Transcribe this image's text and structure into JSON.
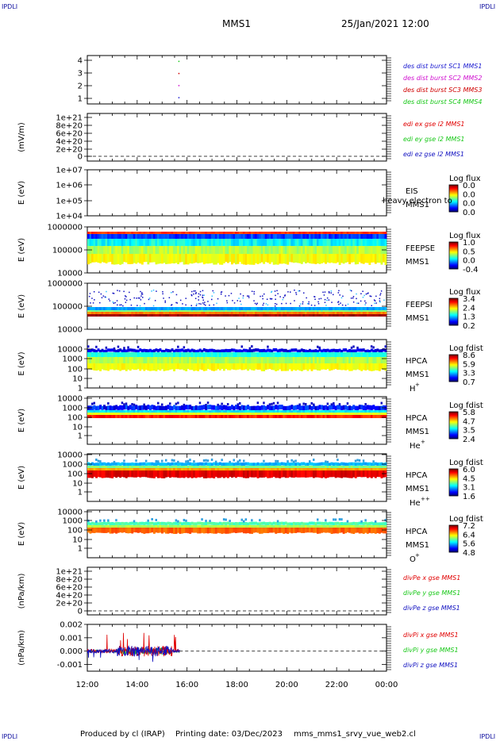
{
  "header": {
    "spacecraft": "MMS1",
    "datetime": "25/Jan/2021 12:00",
    "corner_label": "IPDLI"
  },
  "footer": {
    "produced_by": "Produced by cl (IRAP)",
    "printing_date": "Printing date: 03/Dec/2023",
    "script_name": "mms_mms1_srvy_vue_web2.cl"
  },
  "colors": {
    "mms1": "#1a1ad0",
    "mms2": "#d010d0",
    "mms3": "#d00000",
    "mms4": "#18c818",
    "x_comp": "#e00000",
    "y_comp": "#18c818",
    "z_comp": "#1010c0"
  },
  "time_axis": {
    "ticks": [
      "12:00",
      "14:00",
      "16:00",
      "18:00",
      "20:00",
      "22:00",
      "00:00"
    ],
    "range_hours": [
      12,
      24
    ]
  },
  "chart_data": [
    {
      "type": "scatter",
      "id": "burst",
      "ylim": [
        0.5,
        4.5
      ],
      "ytick_labels": [
        "4",
        "3",
        "2",
        "1"
      ],
      "legend": [
        {
          "label": "des dist burst SC1 MMS1",
          "color_key": "mms1"
        },
        {
          "label": "des dist burst SC2 MMS2",
          "color_key": "mms2"
        },
        {
          "label": "des dist burst SC3 MMS3",
          "color_key": "mms3"
        },
        {
          "label": "des dist burst SC4 MMS4",
          "color_key": "mms4"
        }
      ],
      "points": [
        {
          "t": 15.65,
          "y": 4,
          "color_key": "mms4"
        },
        {
          "t": 15.65,
          "y": 3,
          "color_key": "mms3"
        },
        {
          "t": 15.65,
          "y": 2,
          "color_key": "mms2"
        },
        {
          "t": 15.65,
          "y": 1,
          "color_key": "mms1"
        }
      ]
    },
    {
      "type": "line",
      "id": "edi",
      "ylabel": "(mV/m)",
      "ytick_labels": [
        "1e+21",
        "8e+20",
        "6e+20",
        "4e+20",
        "2e+20",
        "0"
      ],
      "zero_line": true,
      "legend": [
        {
          "label": "edi ex gse l2 MMS1",
          "color_key": "x_comp"
        },
        {
          "label": "edi ey gse l2 MMS1",
          "color_key": "y_comp"
        },
        {
          "label": "edi ez gse l2 MMS1",
          "color_key": "z_comp"
        }
      ]
    },
    {
      "type": "heatmap",
      "id": "eis",
      "ylabel": "E (eV)",
      "ytick_labels": [
        "1e+07",
        "1e+06",
        "1e+05",
        "1e+04"
      ],
      "side_labels": [
        "EIS",
        "MMS1"
      ],
      "overlay_text": "heavy electron to",
      "colorbar_title": "Log flux",
      "colorbar_ticks": [
        "0.0",
        "0.0",
        "0.0",
        "0.0"
      ]
    },
    {
      "type": "heatmap",
      "id": "feepse",
      "ylabel": "E (eV)",
      "ytick_labels": [
        "1000000",
        "100000",
        "10000"
      ],
      "side_labels": [
        "FEEPSE",
        "MMS1"
      ],
      "colorbar_title": "Log flux",
      "colorbar_ticks": [
        "1.0",
        "0.5",
        "0.0",
        "-0.4"
      ]
    },
    {
      "type": "heatmap",
      "id": "feepsi",
      "ylabel": "E (eV)",
      "ytick_labels": [
        "1000000",
        "100000",
        "10000"
      ],
      "side_labels": [
        "FEEPSI",
        "MMS1"
      ],
      "colorbar_title": "Log flux",
      "colorbar_ticks": [
        "3.4",
        "2.4",
        "1.3",
        "0.2"
      ]
    },
    {
      "type": "heatmap",
      "id": "hpca_h",
      "ylabel": "E (eV)",
      "ytick_labels": [
        "10000",
        "1000",
        "100",
        "10",
        "1"
      ],
      "side_labels": [
        "HPCA",
        "MMS1"
      ],
      "species": "H",
      "species_charge": "+",
      "colorbar_title": "Log fdist",
      "colorbar_ticks": [
        "8.6",
        "5.9",
        "3.3",
        "0.7"
      ]
    },
    {
      "type": "heatmap",
      "id": "hpca_he1",
      "ylabel": "E (eV)",
      "ytick_labels": [
        "10000",
        "1000",
        "100",
        "10",
        "1"
      ],
      "side_labels": [
        "HPCA",
        "MMS1"
      ],
      "species": "He",
      "species_charge": "+",
      "colorbar_title": "Log fdist",
      "colorbar_ticks": [
        "5.8",
        "4.7",
        "3.5",
        "2.4"
      ]
    },
    {
      "type": "heatmap",
      "id": "hpca_he2",
      "ylabel": "E (eV)",
      "ytick_labels": [
        "10000",
        "1000",
        "100",
        "10",
        "1"
      ],
      "side_labels": [
        "HPCA",
        "MMS1"
      ],
      "species": "He",
      "species_charge": "++",
      "colorbar_title": "Log fdist",
      "colorbar_ticks": [
        "6.0",
        "4.5",
        "3.1",
        "1.6"
      ]
    },
    {
      "type": "heatmap",
      "id": "hpca_o",
      "ylabel": "E (eV)",
      "ytick_labels": [
        "10000",
        "1000",
        "100",
        "10",
        "1"
      ],
      "side_labels": [
        "HPCA",
        "MMS1"
      ],
      "species": "O",
      "species_charge": "+",
      "colorbar_title": "Log fdist",
      "colorbar_ticks": [
        "7.2",
        "6.4",
        "5.6",
        "4.8"
      ]
    },
    {
      "type": "line",
      "id": "divpe",
      "ylabel": "(nPa/km)",
      "ytick_labels": [
        "1e+21",
        "8e+20",
        "6e+20",
        "4e+20",
        "2e+20",
        "0"
      ],
      "zero_line": true,
      "legend": [
        {
          "label": "divPe x gse MMS1",
          "color_key": "x_comp"
        },
        {
          "label": "divPe y gse MMS1",
          "color_key": "y_comp"
        },
        {
          "label": "divPe z gse MMS1",
          "color_key": "z_comp"
        }
      ]
    },
    {
      "type": "line",
      "id": "divpi",
      "ylabel": "(nPa/km)",
      "ylim": [
        -0.0015,
        0.002
      ],
      "yticks": [
        0.002,
        0.001,
        0.0,
        -0.001
      ],
      "ytick_labels": [
        "0.002",
        "0.001",
        "0.000",
        "-0.001"
      ],
      "data_end_hour": 15.7,
      "zero_line": true,
      "legend": [
        {
          "label": "divPi x gse MMS1",
          "color_key": "x_comp"
        },
        {
          "label": "divPi y gse MMS1",
          "color_key": "y_comp"
        },
        {
          "label": "divPi z gse MMS1",
          "color_key": "z_comp"
        }
      ]
    }
  ]
}
